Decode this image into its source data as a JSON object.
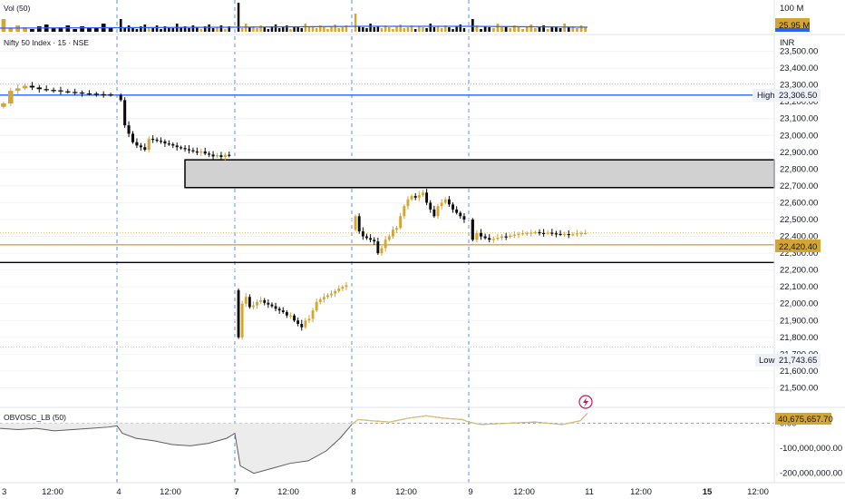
{
  "colors": {
    "bull": "#d4a531",
    "bear": "#0b0b0b",
    "blue_line": "#2962ff",
    "gold_line": "#d4a531",
    "zone_fill": "#d1d1d1",
    "session": "#5b8ee6",
    "obv_fill": "#ececec",
    "obv_line": "#5d5d5d",
    "obv_pos_line": "#d9be73",
    "vol_ma": "#2962ff"
  },
  "panes": {
    "volume": {
      "title": "Vol (50)",
      "scale_label": "100 M",
      "last_value_tag": "25.95 M"
    },
    "price": {
      "title": "Nifty 50 Index · 15 · NSE",
      "currency": "INR"
    },
    "oscillator": {
      "title": "OBVOSC_LB (50)",
      "value_tag": "40,675,657.70",
      "value_tag_partial": "40,675,657.70",
      "icon": "lightning-icon"
    }
  },
  "chart_data": [
    {
      "type": "candlestick",
      "title": "Nifty 50 Index · 15 · NSE",
      "ylim": [
        21400,
        23600
      ],
      "y_ticks": [
        "23,500.00",
        "23,400.00",
        "23,300.00",
        "23,200.00",
        "23,100.00",
        "23,000.00",
        "22,900.00",
        "22,800.00",
        "22,700.00",
        "22,600.00",
        "22,500.00",
        "22,400.00",
        "22,300.00",
        "22,200.00",
        "22,100.00",
        "22,000.00",
        "21,900.00",
        "21,800.00",
        "21,700.00",
        "21,600.00",
        "21,500.00"
      ],
      "y_tick_values": [
        23500,
        23400,
        23300,
        23200,
        23100,
        23000,
        22900,
        22800,
        22700,
        22600,
        22500,
        22400,
        22300,
        22200,
        22100,
        22000,
        21900,
        21800,
        21700,
        21600,
        21500
      ],
      "x_ticks": [
        "3",
        "12:00",
        "4",
        "12:00",
        "7",
        "12:00",
        "8",
        "12:00",
        "9",
        "12:00",
        "11",
        "12:00",
        "15",
        "12:00"
      ],
      "sessions": [
        "4",
        "7",
        "8",
        "9"
      ],
      "markers": {
        "high": {
          "label": "High",
          "value_text": "23,306.50",
          "value": 23306.5
        },
        "low": {
          "label": "Low",
          "value_text": "21,743.65",
          "value": 21743.65
        },
        "last": {
          "value_text": "22,420.40",
          "value": 22420.4
        }
      },
      "levels": [
        {
          "name": "blue-level",
          "value": 23240
        },
        {
          "name": "gold-level",
          "value": 22350
        },
        {
          "name": "black-level",
          "value": 22245
        }
      ],
      "zone": {
        "from": 22690,
        "to": 22855
      },
      "segments": [
        {
          "session": "3",
          "closes": [
            23190,
            23265,
            23280,
            23295,
            23285,
            23275,
            23270,
            23268,
            23262,
            23258,
            23255,
            23250,
            23248,
            23245,
            23244,
            23240
          ]
        },
        {
          "session": "4",
          "closes": [
            23210,
            23060,
            23010,
            22960,
            22940,
            22930,
            22915,
            22980,
            22975,
            22968,
            22965,
            22952,
            22948,
            22940,
            22930,
            22925,
            22918,
            22912,
            22905,
            22898,
            22905,
            22892,
            22886,
            22875,
            22882,
            22872,
            22885,
            22880
          ]
        },
        {
          "session": "7",
          "closes": [
            21800,
            22000,
            22040,
            21980,
            21990,
            22010,
            22020,
            22005,
            21995,
            21985,
            21970,
            21960,
            21950,
            21930,
            21930,
            21900,
            21880,
            21860,
            21900,
            21910,
            21960,
            22010,
            22025,
            22040,
            22050,
            22060,
            22075,
            22090,
            22100,
            22110
          ]
        },
        {
          "session": "8",
          "closes": [
            22520,
            22430,
            22400,
            22390,
            22380,
            22370,
            22300,
            22330,
            22380,
            22400,
            22440,
            22450,
            22520,
            22580,
            22620,
            22640,
            22630,
            22645,
            22660,
            22600,
            22560,
            22520,
            22580,
            22600,
            22620,
            22590,
            22560,
            22540,
            22520,
            22500
          ]
        },
        {
          "session": "9",
          "closes": [
            22380,
            22420,
            22400,
            22390,
            22380,
            22385,
            22392,
            22400,
            22398,
            22405,
            22410,
            22415,
            22418,
            22420,
            22422,
            22425,
            22420,
            22418,
            22422,
            22418,
            22415,
            22412,
            22414,
            22410,
            22413,
            22418,
            22420,
            22420
          ]
        }
      ]
    },
    {
      "type": "bar",
      "title": "Vol (50)",
      "scale_label": "100 M",
      "last_value_text": "25.95 M"
    },
    {
      "type": "area",
      "title": "OBVOSC_LB (50)",
      "y_ticks": [
        "40,675,657.70",
        "0.00",
        "-100,000,000.00",
        "-200,000,000.00"
      ],
      "y_tick_values": [
        40675657.7,
        0,
        -100000000,
        -200000000
      ],
      "ylim": [
        -230000000,
        60000000
      ],
      "series_hint": "dips below zero early, sharp trough on session 7, crosses above zero on session 8 and oscillates near zero"
    }
  ]
}
